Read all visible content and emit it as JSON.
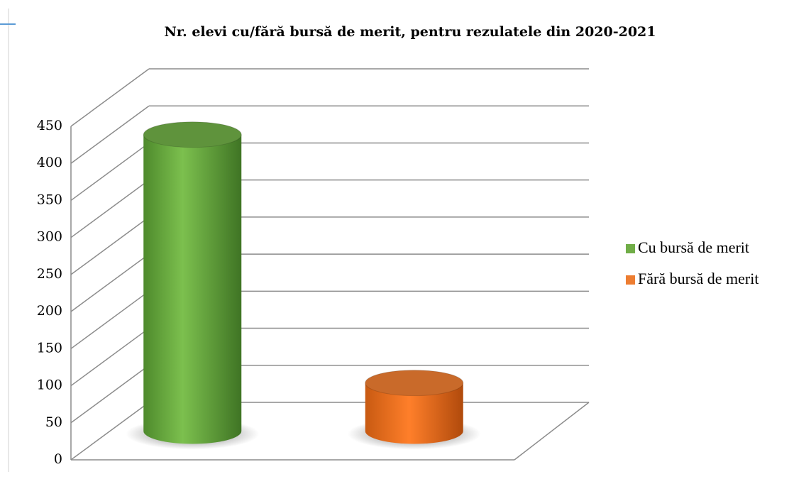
{
  "chart_data": {
    "type": "bar",
    "title": "Nr. elevi cu/fără bursă de merit, pentru rezulatele din 2020-2021",
    "categories": [
      null
    ],
    "series": [
      {
        "name": "Cu bursă de merit",
        "color": "#70ad47",
        "values": [
          400
        ]
      },
      {
        "name": "Fără bursă de merit",
        "color": "#ed7d31",
        "values": [
          65
        ]
      }
    ],
    "ylim": [
      0,
      450
    ],
    "yticks": [
      0,
      50,
      100,
      150,
      200,
      250,
      300,
      350,
      400,
      450
    ],
    "grid": true,
    "legend": "right"
  }
}
